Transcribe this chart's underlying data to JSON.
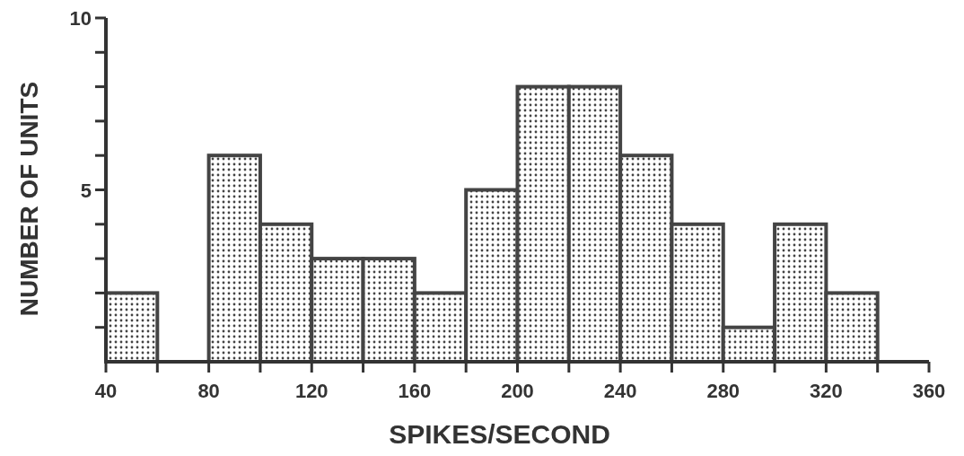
{
  "chart_data": {
    "type": "histogram",
    "xlabel": "SPIKES/SECOND",
    "ylabel": "NUMBER OF UNITS",
    "bins": [
      40,
      60,
      80,
      100,
      120,
      140,
      160,
      180,
      200,
      220,
      240,
      260,
      280,
      300,
      320,
      340
    ],
    "values": [
      2,
      0,
      6,
      4,
      3,
      3,
      2,
      5,
      8,
      8,
      6,
      4,
      1,
      4,
      2
    ],
    "color": "#444444",
    "xlim": [
      40,
      360
    ],
    "xticks": [
      40,
      {
        "value": 60,
        "label": null
      },
      80,
      {
        "value": 100,
        "label": null
      },
      120,
      {
        "value": 140,
        "label": null
      },
      160,
      {
        "value": 180,
        "label": null
      },
      200,
      {
        "value": 220,
        "label": null
      },
      240,
      {
        "value": 260,
        "label": null
      },
      280,
      {
        "value": 300,
        "label": null
      },
      320,
      {
        "value": 340,
        "label": null
      },
      360
    ],
    "ylim": [
      0,
      10
    ],
    "yticks": [
      {
        "value": 1,
        "label": null
      },
      {
        "value": 2,
        "label": null
      },
      {
        "value": 3,
        "label": null
      },
      {
        "value": 4,
        "label": null
      },
      5,
      {
        "value": 6,
        "label": null
      },
      {
        "value": 7,
        "label": null
      },
      {
        "value": 8,
        "label": null
      },
      {
        "value": 9,
        "label": null
      },
      10
    ],
    "grid": false
  }
}
